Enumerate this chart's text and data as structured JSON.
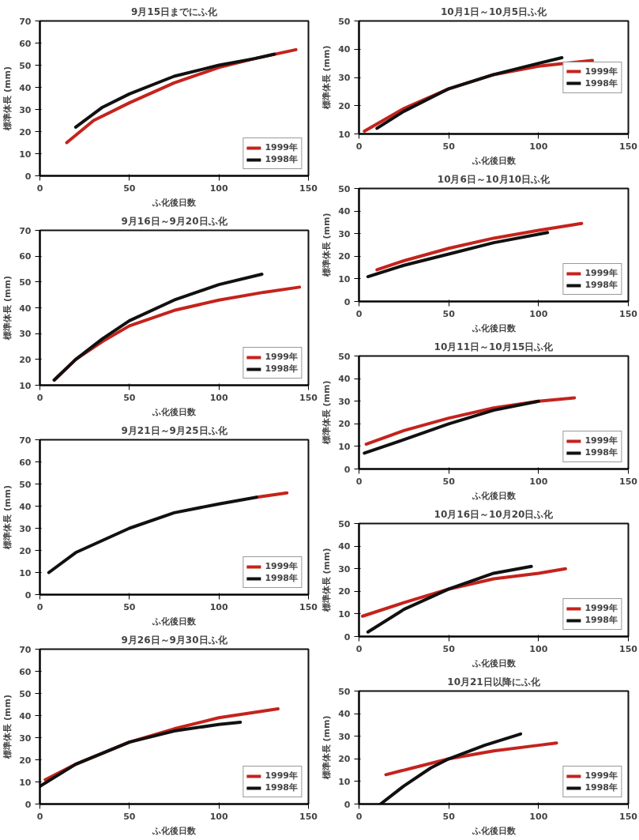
{
  "chart_data": [
    {
      "type": "line",
      "title": "9月15日までにふ化",
      "xlabel": "ふ化後日数",
      "ylabel": "標準体長 (mm)",
      "xlim": [
        0,
        150
      ],
      "xticks": [
        0,
        50,
        100,
        150
      ],
      "ylim": [
        0,
        70
      ],
      "yticks": [
        0,
        10,
        20,
        30,
        40,
        50,
        60,
        70
      ],
      "legend": "bottom right",
      "grid": false,
      "series": [
        {
          "name": "1999年",
          "color": "#c4231c",
          "x": [
            15,
            30,
            50,
            75,
            100,
            120,
            143
          ],
          "values": [
            15,
            25,
            33,
            42,
            49,
            53,
            57
          ]
        },
        {
          "name": "1998年",
          "color": "#111111",
          "x": [
            20,
            35,
            50,
            75,
            100,
            120,
            131
          ],
          "values": [
            22,
            31,
            37,
            45,
            50,
            53,
            55
          ]
        }
      ]
    },
    {
      "type": "line",
      "title": "9月16日～9月20日ふ化",
      "xlabel": "ふ化後日数",
      "ylabel": "標準体長 (mm)",
      "xlim": [
        0,
        150
      ],
      "xticks": [
        0,
        50,
        100,
        150
      ],
      "ylim": [
        10,
        70
      ],
      "yticks": [
        10,
        20,
        30,
        40,
        50,
        60,
        70
      ],
      "legend": "bottom right",
      "grid": false,
      "series": [
        {
          "name": "1999年",
          "color": "#c4231c",
          "x": [
            8,
            20,
            35,
            50,
            75,
            100,
            125,
            145
          ],
          "values": [
            12,
            20,
            27,
            33,
            39,
            43,
            46,
            48
          ]
        },
        {
          "name": "1998年",
          "color": "#111111",
          "x": [
            8,
            20,
            35,
            50,
            75,
            100,
            124
          ],
          "values": [
            12,
            20,
            28,
            35,
            43,
            49,
            53
          ]
        }
      ]
    },
    {
      "type": "line",
      "title": "9月21日～9月25日ふ化",
      "xlabel": "ふ化後日数",
      "ylabel": "標準体長 (mm)",
      "xlim": [
        0,
        150
      ],
      "xticks": [
        0,
        50,
        100,
        150
      ],
      "ylim": [
        0,
        70
      ],
      "yticks": [
        0,
        10,
        20,
        30,
        40,
        50,
        60,
        70
      ],
      "legend": "bottom right",
      "grid": false,
      "series": [
        {
          "name": "1999年",
          "color": "#c4231c",
          "x": [
            121,
            138
          ],
          "values": [
            44,
            46
          ]
        },
        {
          "name": "1998年",
          "color": "#111111",
          "x": [
            5,
            20,
            50,
            75,
            100,
            121
          ],
          "values": [
            10,
            19,
            30,
            37,
            41,
            44
          ]
        }
      ]
    },
    {
      "type": "line",
      "title": "9月26日～9月30日ふ化",
      "xlabel": "ふ化後日数",
      "ylabel": "標準体長 (mm)",
      "xlim": [
        0,
        150
      ],
      "xticks": [
        0,
        50,
        100,
        150
      ],
      "ylim": [
        0,
        70
      ],
      "yticks": [
        0,
        10,
        20,
        30,
        40,
        50,
        60,
        70
      ],
      "legend": "bottom right",
      "grid": false,
      "series": [
        {
          "name": "1999年",
          "color": "#c4231c",
          "x": [
            3,
            20,
            50,
            75,
            100,
            133
          ],
          "values": [
            11,
            18,
            28,
            34,
            39,
            43
          ]
        },
        {
          "name": "1998年",
          "color": "#111111",
          "x": [
            0,
            20,
            50,
            75,
            100,
            112
          ],
          "values": [
            8,
            18,
            28,
            33,
            36,
            37
          ]
        }
      ]
    },
    {
      "type": "line",
      "title": "10月1日～10月5日ふ化",
      "xlabel": "ふ化後日数",
      "ylabel": "標準体長 (mm)",
      "xlim": [
        0,
        150
      ],
      "xticks": [
        0,
        50,
        100,
        150
      ],
      "ylim": [
        10,
        50
      ],
      "yticks": [
        10,
        20,
        30,
        40,
        50
      ],
      "legend": "right",
      "grid": false,
      "series": [
        {
          "name": "1999年",
          "color": "#c4231c",
          "x": [
            3,
            25,
            50,
            75,
            100,
            130
          ],
          "values": [
            11,
            19,
            26,
            31,
            34,
            36
          ]
        },
        {
          "name": "1998年",
          "color": "#111111",
          "x": [
            10,
            25,
            50,
            75,
            100,
            113
          ],
          "values": [
            12,
            18,
            26,
            31,
            35,
            37
          ]
        }
      ]
    },
    {
      "type": "line",
      "title": "10月6日～10月10日ふ化",
      "xlabel": "ふ化後日数",
      "ylabel": "標準体長 (mm)",
      "xlim": [
        0,
        150
      ],
      "xticks": [
        0,
        50,
        100,
        150
      ],
      "ylim": [
        0,
        50
      ],
      "yticks": [
        0,
        10,
        20,
        30,
        40,
        50
      ],
      "legend": "bottom right",
      "grid": false,
      "series": [
        {
          "name": "1999年",
          "color": "#c4231c",
          "x": [
            10,
            25,
            50,
            75,
            100,
            124
          ],
          "values": [
            14,
            18,
            23.5,
            28,
            31.5,
            34.5
          ]
        },
        {
          "name": "1998年",
          "color": "#111111",
          "x": [
            5,
            25,
            50,
            75,
            105
          ],
          "values": [
            11,
            16,
            21,
            26,
            30.5
          ]
        }
      ]
    },
    {
      "type": "line",
      "title": "10月11日～10月15日ふ化",
      "xlabel": "ふ化後日数",
      "ylabel": "標準体長 (mm)",
      "xlim": [
        0,
        150
      ],
      "xticks": [
        0,
        50,
        100,
        150
      ],
      "ylim": [
        0,
        50
      ],
      "yticks": [
        0,
        10,
        20,
        30,
        40,
        50
      ],
      "legend": "bottom right",
      "grid": false,
      "series": [
        {
          "name": "1999年",
          "color": "#c4231c",
          "x": [
            4,
            25,
            50,
            75,
            100,
            120
          ],
          "values": [
            11,
            17,
            22.5,
            27,
            30,
            31.5
          ]
        },
        {
          "name": "1998年",
          "color": "#111111",
          "x": [
            3,
            25,
            50,
            75,
            100
          ],
          "values": [
            7,
            13,
            20,
            26,
            30
          ]
        }
      ]
    },
    {
      "type": "line",
      "title": "10月16日～10月20日ふ化",
      "xlabel": "ふ化後日数",
      "ylabel": "標準体長 (mm)",
      "xlim": [
        0,
        150
      ],
      "xticks": [
        0,
        50,
        100,
        150
      ],
      "ylim": [
        0,
        50
      ],
      "yticks": [
        0,
        10,
        20,
        30,
        40,
        50
      ],
      "legend": "bottom right",
      "grid": false,
      "series": [
        {
          "name": "1999年",
          "color": "#c4231c",
          "x": [
            2,
            25,
            50,
            75,
            100,
            115
          ],
          "values": [
            9,
            15,
            21,
            25.5,
            28,
            30
          ]
        },
        {
          "name": "1998年",
          "color": "#111111",
          "x": [
            5,
            25,
            50,
            75,
            96
          ],
          "values": [
            2,
            12,
            21,
            28,
            31
          ]
        }
      ]
    },
    {
      "type": "line",
      "title": "10月21日以降にふ化",
      "xlabel": "ふ化後日数",
      "ylabel": "標準体長 (mm)",
      "xlim": [
        0,
        150
      ],
      "xticks": [
        0,
        50,
        100,
        150
      ],
      "ylim": [
        0,
        50
      ],
      "yticks": [
        0,
        10,
        20,
        30,
        40,
        50
      ],
      "legend": "bottom right",
      "grid": false,
      "series": [
        {
          "name": "1999年",
          "color": "#c4231c",
          "x": [
            15,
            30,
            50,
            75,
            100,
            110
          ],
          "values": [
            13,
            16,
            20,
            23.5,
            26,
            27
          ]
        },
        {
          "name": "1998年",
          "color": "#111111",
          "x": [
            12,
            25,
            40,
            50,
            70,
            90
          ],
          "values": [
            0,
            8,
            16,
            20,
            26,
            31
          ]
        }
      ]
    }
  ]
}
